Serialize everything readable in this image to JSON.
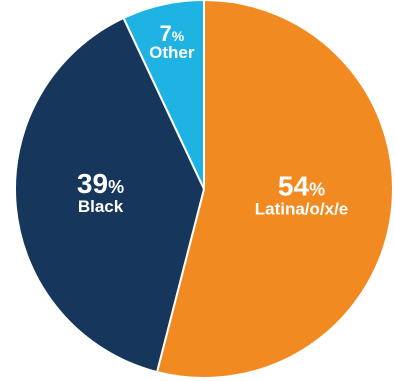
{
  "chart_data": {
    "type": "pie",
    "title": "",
    "start_angle_deg": 0,
    "direction": "clockwise",
    "slices": [
      {
        "label": "Latina/o/x/e",
        "value": 54,
        "display_value": "54",
        "color": "#F28A22"
      },
      {
        "label": "Black",
        "value": 39,
        "display_value": "39",
        "color": "#16365C"
      },
      {
        "label": "Other",
        "value": 7,
        "display_value": "7",
        "color": "#1FB3E3"
      }
    ],
    "percent_symbol": "%",
    "slice_border_color": "#ffffff"
  }
}
